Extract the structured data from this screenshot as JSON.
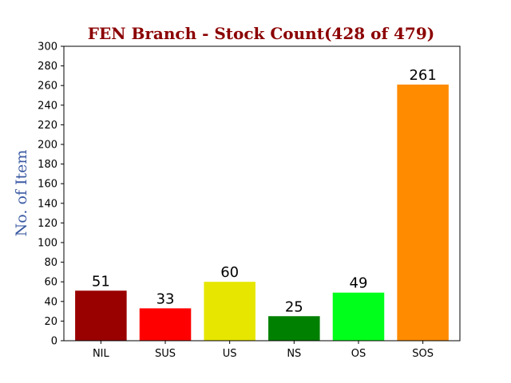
{
  "chart_data": {
    "type": "bar",
    "title": "FEN Branch - Stock Count(428 of 479)",
    "title_color": "#8b0000",
    "xlabel": "",
    "ylabel": "No. of Item",
    "ylabel_color": "#3b5aa3",
    "ylim": [
      0,
      300
    ],
    "yticks": [
      "0",
      "20",
      "40",
      "60",
      "80",
      "100",
      "120",
      "140",
      "160",
      "180",
      "200",
      "220",
      "240",
      "260",
      "280",
      "300"
    ],
    "grid": false,
    "categories": [
      "NIL",
      "SUS",
      "US",
      "NS",
      "OS",
      "SOS"
    ],
    "values": [
      51,
      33,
      60,
      25,
      49,
      261
    ],
    "value_labels": [
      "51",
      "33",
      "60",
      "25",
      "49",
      "261"
    ],
    "colors": [
      "#990000",
      "#ff0000",
      "#e6e600",
      "#008000",
      "#00ff1a",
      "#ff8c00"
    ]
  }
}
